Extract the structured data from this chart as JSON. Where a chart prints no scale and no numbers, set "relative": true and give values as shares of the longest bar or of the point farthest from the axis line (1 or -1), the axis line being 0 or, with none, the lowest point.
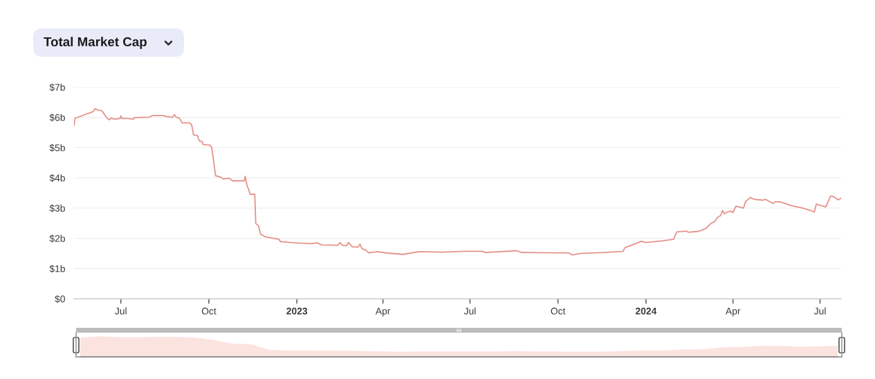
{
  "chart_data": [
    {
      "type": "line",
      "title": "Total Market Cap",
      "x": [
        "2022-05-13",
        "2022-05-14",
        "2022-06-02",
        "2022-06-04",
        "2022-06-07",
        "2022-06-11",
        "2022-06-17",
        "2022-06-19",
        "2022-06-21",
        "2022-06-24",
        "2022-06-30",
        "2022-07-01",
        "2022-07-02",
        "2022-07-09",
        "2022-07-14",
        "2022-07-15",
        "2022-07-31",
        "2022-08-03",
        "2022-08-15",
        "2022-08-17",
        "2022-08-24",
        "2022-08-26",
        "2022-08-28",
        "2022-08-31",
        "2022-09-03",
        "2022-09-11",
        "2022-09-13",
        "2022-09-15",
        "2022-09-19",
        "2022-09-21",
        "2022-09-24",
        "2022-09-25",
        "2022-10-02",
        "2022-10-04",
        "2022-10-08",
        "2022-10-13",
        "2022-10-16",
        "2022-10-22",
        "2022-10-26",
        "2022-11-07",
        "2022-11-08",
        "2022-11-10",
        "2022-11-11",
        "2022-11-13",
        "2022-11-18",
        "2022-11-19",
        "2022-11-22",
        "2022-11-24",
        "2022-11-29",
        "2022-12-06",
        "2022-12-13",
        "2022-12-15",
        "2022-12-30",
        "2023-01-16",
        "2023-01-22",
        "2023-01-27",
        "2023-02-13",
        "2023-02-15",
        "2023-02-18",
        "2023-02-22",
        "2023-02-24",
        "2023-02-28",
        "2023-03-06",
        "2023-03-08",
        "2023-03-10",
        "2023-03-14",
        "2023-03-17",
        "2023-03-26",
        "2023-04-06",
        "2023-04-22",
        "2023-05-09",
        "2023-06-02",
        "2023-06-24",
        "2023-07-14",
        "2023-07-17",
        "2023-08-19",
        "2023-08-24",
        "2023-10-01",
        "2023-10-12",
        "2023-10-16",
        "2023-10-25",
        "2023-11-18",
        "2023-12-08",
        "2023-12-10",
        "2023-12-20",
        "2023-12-27",
        "2024-01-01",
        "2024-01-10",
        "2024-01-19",
        "2024-01-30",
        "2024-02-02",
        "2024-02-12",
        "2024-02-14",
        "2024-02-25",
        "2024-03-04",
        "2024-03-08",
        "2024-03-13",
        "2024-03-16",
        "2024-03-19",
        "2024-03-21",
        "2024-03-23",
        "2024-03-26",
        "2024-03-30",
        "2024-04-01",
        "2024-04-04",
        "2024-04-12",
        "2024-04-14",
        "2024-04-19",
        "2024-04-23",
        "2024-05-02",
        "2024-05-05",
        "2024-05-13",
        "2024-05-15",
        "2024-05-21",
        "2024-06-01",
        "2024-06-13",
        "2024-06-22",
        "2024-06-25",
        "2024-06-27",
        "2024-07-01",
        "2024-07-07",
        "2024-07-12",
        "2024-07-15",
        "2024-07-20",
        "2024-07-23"
      ],
      "series": [
        {
          "color": "#e5928b",
          "values": [
            5.73,
            5.97,
            6.19,
            6.29,
            6.24,
            6.22,
            5.96,
            5.92,
            5.98,
            5.94,
            5.96,
            6.05,
            5.96,
            5.96,
            5.94,
            5.99,
            6.01,
            6.06,
            6.06,
            6.03,
            6.0,
            6.09,
            6.0,
            5.98,
            5.82,
            5.82,
            5.75,
            5.42,
            5.4,
            5.22,
            5.2,
            5.1,
            5.08,
            5.0,
            4.07,
            4.03,
            3.96,
            3.99,
            3.9,
            3.9,
            4.05,
            3.73,
            3.67,
            3.46,
            3.46,
            2.49,
            2.41,
            2.14,
            2.05,
            2.01,
            1.97,
            1.89,
            1.85,
            1.82,
            1.85,
            1.78,
            1.77,
            1.86,
            1.76,
            1.76,
            1.86,
            1.72,
            1.71,
            1.81,
            1.66,
            1.61,
            1.52,
            1.56,
            1.51,
            1.47,
            1.56,
            1.54,
            1.57,
            1.57,
            1.53,
            1.59,
            1.53,
            1.52,
            1.52,
            1.45,
            1.5,
            1.53,
            1.57,
            1.69,
            1.81,
            1.9,
            1.86,
            1.89,
            1.92,
            1.97,
            2.21,
            2.24,
            2.2,
            2.23,
            2.33,
            2.47,
            2.56,
            2.7,
            2.75,
            2.92,
            2.81,
            2.87,
            2.9,
            2.85,
            3.06,
            3.0,
            3.21,
            3.35,
            3.29,
            3.26,
            3.29,
            3.15,
            3.21,
            3.2,
            3.08,
            3.0,
            2.91,
            2.87,
            3.13,
            3.09,
            3.04,
            3.4,
            3.38,
            3.27,
            3.33
          ]
        }
      ],
      "xlim": [
        "2022-05-13",
        "2024-07-23"
      ],
      "xticks": [
        {
          "value": "2022-07-01",
          "label": "Jul"
        },
        {
          "value": "2022-10-01",
          "label": "Oct"
        },
        {
          "value": "2023-01-01",
          "label": "2023"
        },
        {
          "value": "2023-04-01",
          "label": "Apr"
        },
        {
          "value": "2023-07-01",
          "label": "Jul"
        },
        {
          "value": "2023-10-01",
          "label": "Oct"
        },
        {
          "value": "2024-01-01",
          "label": "2024"
        },
        {
          "value": "2024-04-01",
          "label": "Apr"
        },
        {
          "value": "2024-07-01",
          "label": "Jul"
        }
      ],
      "ylim": [
        0,
        7
      ],
      "yticks": [
        {
          "value": 0,
          "label": "$0"
        },
        {
          "value": 1,
          "label": "$1b"
        },
        {
          "value": 2,
          "label": "$2b"
        },
        {
          "value": 3,
          "label": "$3b"
        },
        {
          "value": 4,
          "label": "$4b"
        },
        {
          "value": 5,
          "label": "$5b"
        },
        {
          "value": 6,
          "label": "$6b"
        },
        {
          "value": 7,
          "label": "$7b"
        }
      ],
      "grid": "y"
    },
    {
      "type": "area",
      "relative": true,
      "tick_labels": false,
      "categories": [
        null,
        null,
        null,
        null,
        null,
        null,
        null,
        null,
        null,
        null,
        null,
        null,
        null,
        null,
        null,
        null,
        null,
        null,
        null,
        null,
        null,
        null,
        null,
        null,
        null,
        null,
        null,
        null,
        null,
        null,
        null,
        null,
        null,
        null,
        null,
        null,
        null,
        null,
        null,
        null,
        null
      ],
      "series": [
        {
          "color": "#fbe3e0",
          "values": [
            0.93,
            1,
            0.96,
            0.96,
            0.97,
            0.97,
            0.94,
            0.82,
            0.64,
            0.61,
            0.33,
            0.3,
            0.3,
            0.29,
            0.29,
            0.27,
            0.25,
            0.24,
            0.25,
            0.25,
            0.25,
            0.25,
            0.25,
            0.26,
            0.25,
            0.25,
            0.24,
            0.24,
            0.25,
            0.28,
            0.3,
            0.31,
            0.36,
            0.37,
            0.46,
            0.48,
            0.53,
            0.52,
            0.49,
            0.5,
            0.53
          ]
        }
      ]
    }
  ]
}
